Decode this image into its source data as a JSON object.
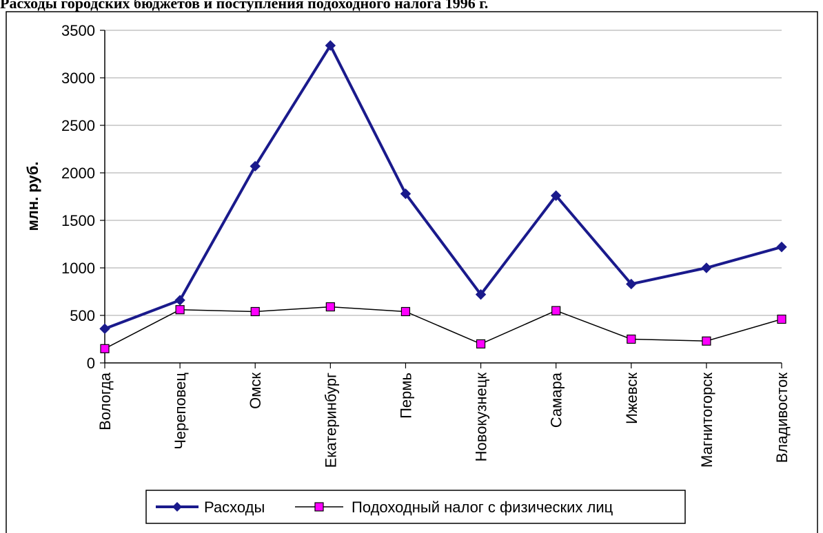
{
  "title": "Расходы городских бюджетов и поступления подоходного налога 1996 г.",
  "colors": {
    "expenses": "#1a1a8c",
    "tax_line": "#000000",
    "tax_marker": "#ff00ff",
    "grid": "#a6a6a6"
  },
  "chart_data": {
    "type": "line",
    "title": "Расходы городских бюджетов и поступления подоходного налога 1996 г.",
    "xlabel": "",
    "ylabel": "млн. руб.",
    "ylim": [
      0,
      3500
    ],
    "yticks": [
      0,
      500,
      1000,
      1500,
      2000,
      2500,
      3000,
      3500
    ],
    "grid": true,
    "legend": "bottom",
    "categories": [
      "Вологда",
      "Череповец",
      "Омск",
      "Екатеринбург",
      "Пермь",
      "Новокузнецк",
      "Самара",
      "Ижевск",
      "Магнитогорск",
      "Владивосток"
    ],
    "series": [
      {
        "name": "Расходы",
        "marker": "diamond",
        "values": [
          360,
          660,
          2070,
          3340,
          1780,
          720,
          1760,
          830,
          1000,
          1220
        ]
      },
      {
        "name": "Подоходный налог с физических лиц",
        "marker": "square",
        "values": [
          150,
          560,
          540,
          590,
          540,
          200,
          550,
          250,
          230,
          460
        ]
      }
    ]
  }
}
